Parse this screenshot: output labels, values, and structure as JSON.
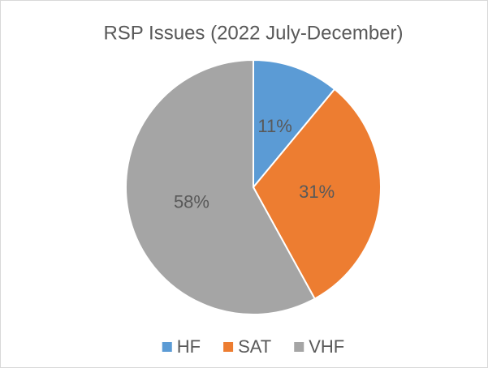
{
  "chart_data": {
    "type": "pie",
    "title": "RSP Issues (2022 July-December)",
    "categories": [
      "HF",
      "SAT",
      "VHF"
    ],
    "values": [
      11,
      31,
      58
    ],
    "value_labels": [
      "11%",
      "31%",
      "58%"
    ],
    "colors": [
      "#5b9bd5",
      "#ed7d31",
      "#a5a5a5"
    ],
    "legend": "bottom"
  }
}
